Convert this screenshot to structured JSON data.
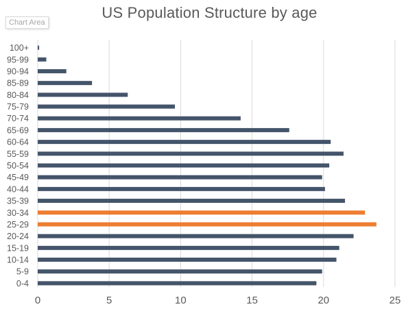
{
  "chart_data": {
    "type": "bar",
    "orientation": "horizontal",
    "title": "US Population Structure by age",
    "tooltip": "Chart Area",
    "categories": [
      "0-4",
      "5-9",
      "10-14",
      "15-19",
      "20-24",
      "25-29",
      "30-34",
      "35-39",
      "40-44",
      "45-49",
      "50-54",
      "55-59",
      "60-64",
      "65-69",
      "70-74",
      "75-79",
      "80-84",
      "85-89",
      "90-94",
      "95-99",
      "100+"
    ],
    "values": [
      19.5,
      19.9,
      20.9,
      21.1,
      22.1,
      23.7,
      22.9,
      21.5,
      20.1,
      19.9,
      20.4,
      21.4,
      20.5,
      17.6,
      14.2,
      9.6,
      6.3,
      3.8,
      2.0,
      0.6,
      0.1
    ],
    "highlighted": [
      "25-29",
      "30-34"
    ],
    "xlim": [
      0,
      25
    ],
    "xticks": [
      0,
      5,
      10,
      15,
      20,
      25
    ],
    "xlabel": "",
    "ylabel": "",
    "grid": true,
    "legend": "none",
    "colors": {
      "bar": "#44546A",
      "highlight": "#ED7D31",
      "grid": "#d9d9d9",
      "text": "#595959"
    }
  }
}
